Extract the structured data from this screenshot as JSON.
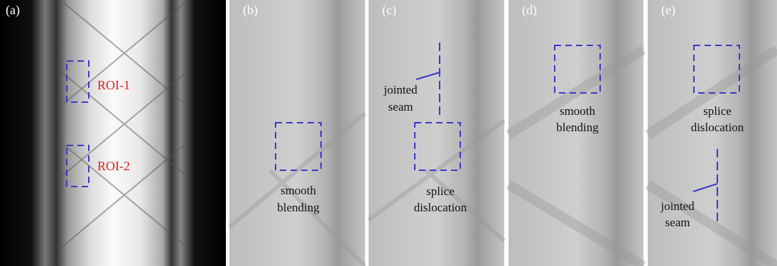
{
  "panels": [
    {
      "label": "(a)",
      "annotations": [
        "ROI-1",
        "ROI-2"
      ]
    },
    {
      "label": "(b)",
      "annotations": [
        "smooth",
        "blending"
      ]
    },
    {
      "label": "(c)",
      "annotations": [
        "jointed",
        "seam",
        "splice",
        "dislocation"
      ]
    },
    {
      "label": "(d)",
      "annotations": [
        "smooth",
        "blending"
      ]
    },
    {
      "label": "(e)",
      "annotations": [
        "splice",
        "dislocation",
        "jointed",
        "seam"
      ]
    }
  ]
}
